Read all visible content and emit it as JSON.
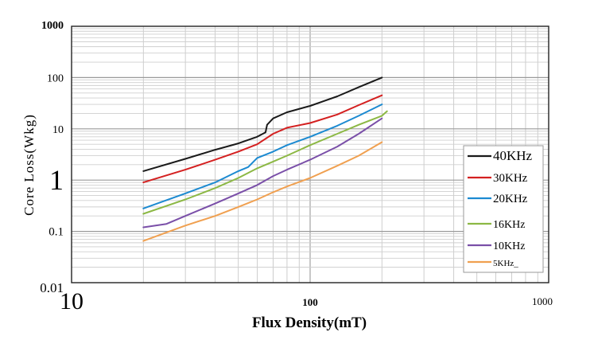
{
  "chart_data": {
    "type": "line",
    "xlabel": "Flux Density(mT)",
    "ylabel": "Core Loss(Wkg)",
    "x_scale": "log",
    "y_scale": "log",
    "xlim": [
      10,
      1000
    ],
    "ylim": [
      0.01,
      1000
    ],
    "grid": true,
    "legend_position": "right",
    "x_tick_labels": [
      "10",
      "100",
      "1000"
    ],
    "y_tick_labels": [
      "1000",
      "100",
      "10",
      "1",
      "0.1",
      "0.01"
    ],
    "series": [
      {
        "name": "40KHz",
        "color": "#1a1a1a",
        "points": [
          [
            20,
            1.5
          ],
          [
            30,
            2.6
          ],
          [
            40,
            3.9
          ],
          [
            50,
            5.2
          ],
          [
            60,
            7.0
          ],
          [
            65,
            8.5
          ],
          [
            66,
            12
          ],
          [
            70,
            16
          ],
          [
            80,
            21
          ],
          [
            100,
            28
          ],
          [
            130,
            43
          ],
          [
            160,
            65
          ],
          [
            200,
            100
          ]
        ]
      },
      {
        "name": "30KHz",
        "color": "#d42020",
        "points": [
          [
            20,
            0.9
          ],
          [
            30,
            1.6
          ],
          [
            40,
            2.5
          ],
          [
            50,
            3.6
          ],
          [
            60,
            5.0
          ],
          [
            70,
            8.0
          ],
          [
            80,
            10.5
          ],
          [
            100,
            13
          ],
          [
            130,
            19
          ],
          [
            160,
            29
          ],
          [
            200,
            45
          ]
        ]
      },
      {
        "name": "20KHz",
        "color": "#1c8ad1",
        "points": [
          [
            20,
            0.28
          ],
          [
            30,
            0.55
          ],
          [
            40,
            0.9
          ],
          [
            50,
            1.5
          ],
          [
            55,
            1.8
          ],
          [
            60,
            2.7
          ],
          [
            70,
            3.6
          ],
          [
            80,
            4.8
          ],
          [
            100,
            7.0
          ],
          [
            130,
            11.5
          ],
          [
            160,
            18
          ],
          [
            200,
            30
          ]
        ]
      },
      {
        "name": "16KHz",
        "color": "#8cb844",
        "points": [
          [
            20,
            0.22
          ],
          [
            30,
            0.42
          ],
          [
            40,
            0.7
          ],
          [
            50,
            1.1
          ],
          [
            60,
            1.7
          ],
          [
            70,
            2.3
          ],
          [
            80,
            3.0
          ],
          [
            100,
            4.8
          ],
          [
            130,
            8.0
          ],
          [
            160,
            12
          ],
          [
            200,
            18
          ],
          [
            210,
            22
          ]
        ]
      },
      {
        "name": "10KHz",
        "color": "#7a4fa8",
        "points": [
          [
            20,
            0.12
          ],
          [
            25,
            0.14
          ],
          [
            30,
            0.2
          ],
          [
            40,
            0.35
          ],
          [
            50,
            0.55
          ],
          [
            60,
            0.8
          ],
          [
            70,
            1.2
          ],
          [
            80,
            1.6
          ],
          [
            100,
            2.5
          ],
          [
            130,
            4.5
          ],
          [
            160,
            8.0
          ],
          [
            200,
            16
          ]
        ]
      },
      {
        "name": "5KHz_",
        "color": "#f0a050",
        "points": [
          [
            20,
            0.065
          ],
          [
            30,
            0.13
          ],
          [
            40,
            0.2
          ],
          [
            50,
            0.3
          ],
          [
            60,
            0.42
          ],
          [
            70,
            0.58
          ],
          [
            80,
            0.75
          ],
          [
            100,
            1.1
          ],
          [
            130,
            1.9
          ],
          [
            160,
            3.0
          ],
          [
            200,
            5.5
          ]
        ]
      }
    ]
  }
}
